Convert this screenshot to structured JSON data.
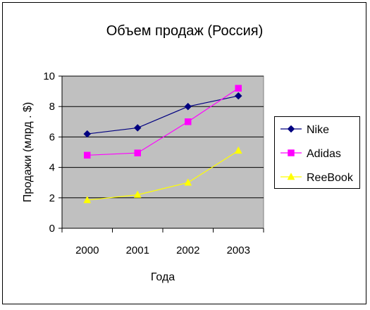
{
  "chart_data": {
    "type": "line",
    "title": "Объем продаж (Россия)",
    "xlabel": "Года",
    "ylabel": "Продажи    (млрд . $)",
    "categories": [
      "2000",
      "2001",
      "2002",
      "2003"
    ],
    "ylim": [
      0,
      10
    ],
    "yticks": [
      "0",
      "2",
      "4",
      "6",
      "8",
      "10"
    ],
    "grid": true,
    "legend_position": "right",
    "series": [
      {
        "name": "Nike",
        "values": [
          6.2,
          6.6,
          8.0,
          8.7
        ],
        "color": "#000080",
        "marker": "diamond"
      },
      {
        "name": "Adidas",
        "values": [
          4.8,
          4.95,
          7.0,
          9.2
        ],
        "color": "#FF00FF",
        "marker": "square"
      },
      {
        "name": "ReeBook",
        "values": [
          1.85,
          2.2,
          3.0,
          5.1
        ],
        "color": "#FFFF00",
        "marker": "triangle"
      }
    ]
  }
}
